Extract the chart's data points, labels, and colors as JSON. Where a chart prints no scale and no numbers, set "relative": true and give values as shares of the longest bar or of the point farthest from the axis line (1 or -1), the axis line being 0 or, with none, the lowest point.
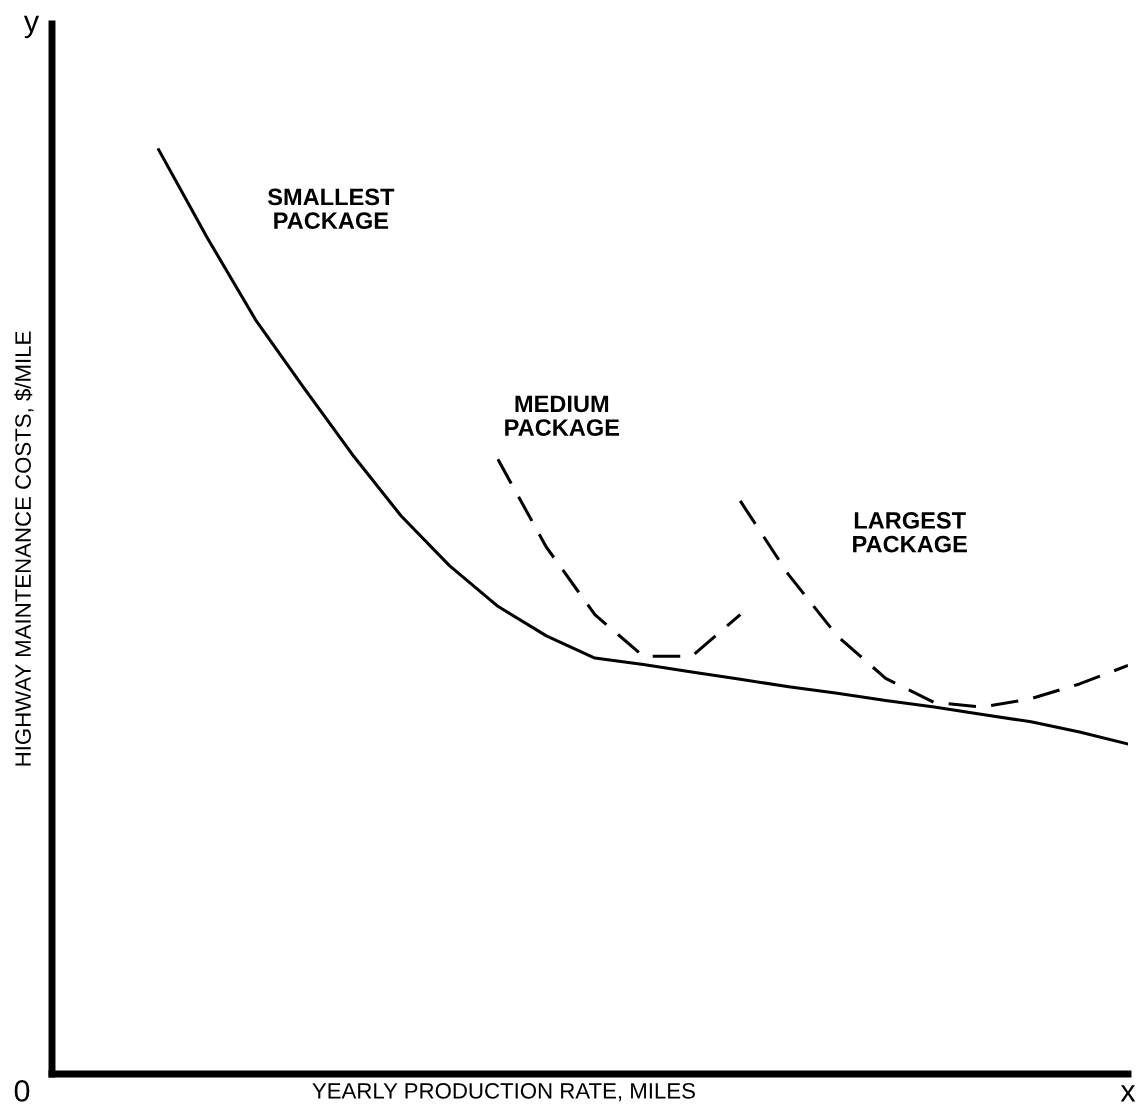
{
  "chart_data": {
    "type": "line",
    "relative": true,
    "xlabel": "YEARLY PRODUCTION RATE, MILES",
    "ylabel": "HIGHWAY MAINTENANCE COSTS, $/MILE",
    "annotations": [
      "y",
      "0",
      "x"
    ],
    "legend": false,
    "marker": "none",
    "categories": [
      null,
      null,
      null,
      null,
      null,
      null,
      null,
      null,
      null,
      null,
      null,
      null,
      null,
      null,
      null,
      null,
      null,
      null,
      null,
      null,
      null
    ],
    "series": [
      {
        "name": "SMALLEST\nPACKAGE",
        "color": "#000000",
        "line_style": "solid",
        "values": [
          1.0,
          0.905,
          0.816,
          0.742,
          0.67,
          0.604,
          0.55,
          0.506,
          0.474,
          0.45,
          0.443,
          0.435,
          0.427,
          0.419,
          0.412,
          0.404,
          0.397,
          0.389,
          0.381,
          0.37,
          0.357
        ]
      },
      {
        "name": "MEDIUM\nPACKAGE",
        "color": "#000000",
        "line_style": "dashed",
        "values": [
          null,
          null,
          null,
          null,
          null,
          null,
          null,
          0.665,
          0.57,
          0.497,
          0.452,
          0.452,
          0.497,
          null,
          null,
          null,
          null,
          null,
          null,
          null,
          null
        ]
      },
      {
        "name": "LARGEST\nPACKAGE",
        "color": "#000000",
        "line_style": "dashed",
        "values": [
          null,
          null,
          null,
          null,
          null,
          null,
          null,
          null,
          null,
          null,
          null,
          null,
          0.62,
          0.54,
          0.474,
          0.428,
          0.402,
          0.397,
          0.406,
          0.422,
          0.442
        ]
      }
    ]
  }
}
